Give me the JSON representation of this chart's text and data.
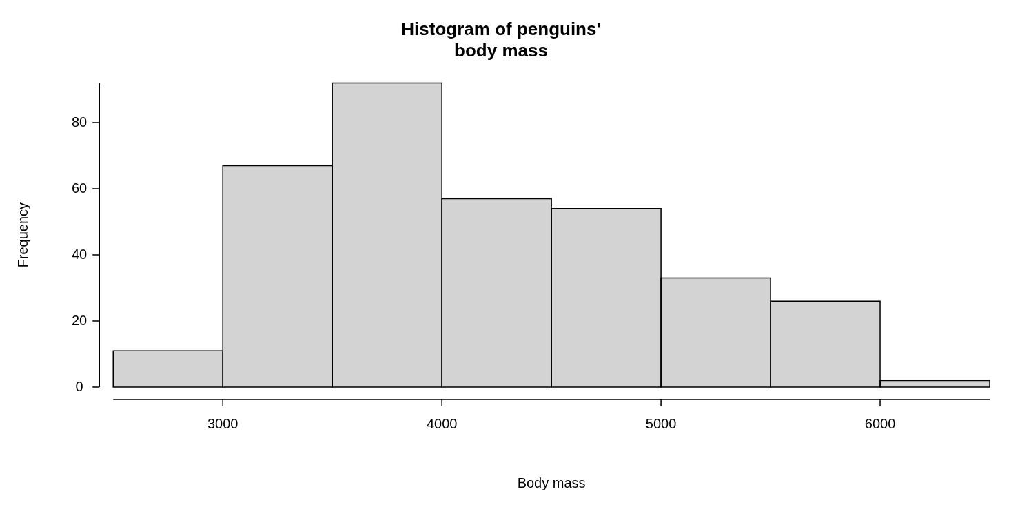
{
  "chart_data": {
    "type": "histogram",
    "title": "Histogram of penguins'\nbody mass",
    "xlabel": "Body mass",
    "ylabel": "Frequency",
    "bins": [
      2500,
      3000,
      3500,
      4000,
      4500,
      5000,
      5500,
      6000,
      6500
    ],
    "values": [
      11,
      67,
      92,
      57,
      54,
      33,
      26,
      2
    ],
    "color": "#d3d3d3",
    "xlim": [
      2500,
      6500
    ],
    "xticks": [
      3000,
      4000,
      5000,
      6000
    ],
    "ylim": [
      0,
      92
    ],
    "yticks": [
      0,
      20,
      40,
      60,
      80
    ],
    "grid": false,
    "legend": false
  }
}
